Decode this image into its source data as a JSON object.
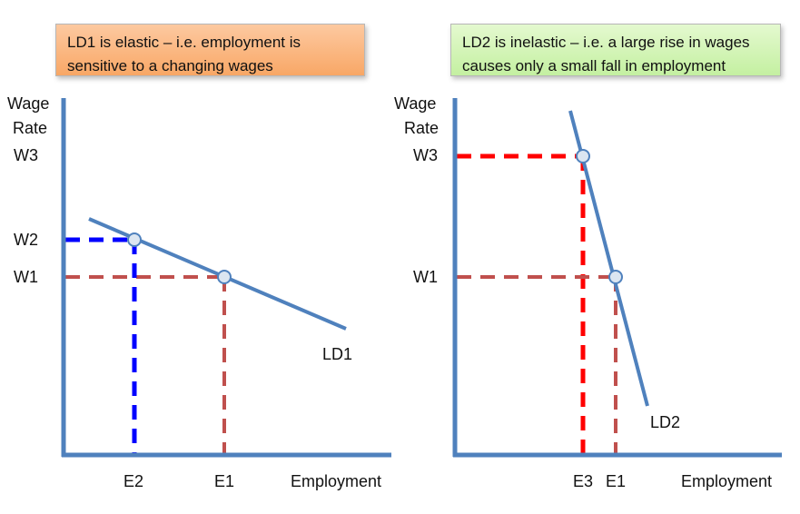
{
  "notes": {
    "left": "LD1 is elastic – i.e. employment is sensitive to a changing wages",
    "right": "LD2 is inelastic – i.e. a large rise in wages causes only a small fall in employment"
  },
  "left_panel": {
    "y_label_line1": "Wage",
    "y_label_line2": "Rate",
    "x_label": "Employment",
    "y_ticks": [
      "W3",
      "W2",
      "W1"
    ],
    "x_ticks": [
      "E2",
      "E1"
    ],
    "curve_label": "LD1"
  },
  "right_panel": {
    "y_label_line1": "Wage",
    "y_label_line2": "Rate",
    "x_label": "Employment",
    "y_ticks": [
      "W3",
      "W1"
    ],
    "x_ticks": [
      "E3",
      "E1"
    ],
    "curve_label": "LD2"
  },
  "colors": {
    "axis": "#4f81bd",
    "curve": "#4f81bd",
    "dash_brown": "#c0504d",
    "dash_blue": "#0000ff",
    "dash_red": "#ff0000",
    "point_fill": "#dce6f1",
    "point_stroke": "#4f81bd"
  }
}
